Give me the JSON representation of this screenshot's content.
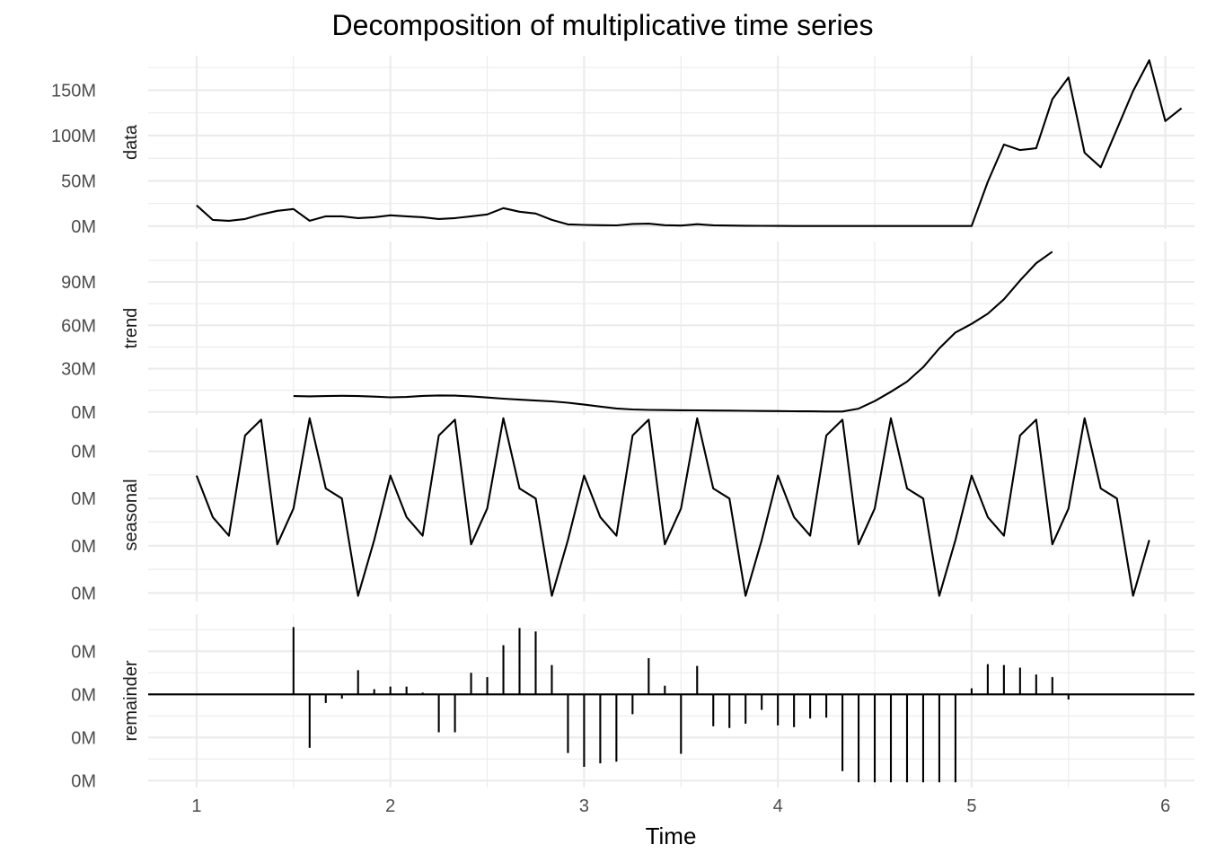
{
  "chart_data": {
    "type": "line",
    "title": "Decomposition of multiplicative time series",
    "xlabel": "Time",
    "xlim": [
      0.75,
      6.15
    ],
    "x_ticks": [
      1,
      2,
      3,
      4,
      5,
      6
    ],
    "x_tick_labels": [
      "1",
      "2",
      "3",
      "4",
      "5",
      "6"
    ],
    "frequency": 12,
    "grid": true,
    "panels": [
      {
        "name": "data",
        "type": "line",
        "start": 1,
        "ylim": [
          -3,
          188
        ],
        "y_ticks": [
          0,
          50,
          100,
          150
        ],
        "y_tick_labels": [
          "0M",
          "50M",
          "100M",
          "150M"
        ],
        "values": [
          23,
          7,
          6,
          8,
          13,
          17,
          19,
          6,
          11,
          11,
          9,
          10,
          12,
          11,
          10,
          8,
          9,
          11,
          13,
          20,
          16,
          14,
          7,
          2,
          1.5,
          1.2,
          1,
          2.5,
          2.8,
          1.2,
          0.8,
          2.2,
          1.1,
          0.8,
          0.6,
          0.5,
          0.4,
          0.3,
          0.3,
          0.3,
          0.3,
          0.3,
          0.3,
          0.3,
          0.3,
          0.3,
          0.3,
          0.3,
          0.3,
          49,
          90,
          84,
          86,
          140,
          164,
          81,
          65,
          107,
          149,
          183,
          116,
          130
        ]
      },
      {
        "name": "trend",
        "type": "line",
        "start": 1.5,
        "ylim": [
          -2,
          118
        ],
        "y_ticks": [
          0,
          30,
          60,
          90
        ],
        "y_tick_labels": [
          "0M",
          "30M",
          "60M",
          "90M"
        ],
        "values": [
          11,
          10.8,
          11,
          11.2,
          11,
          10.6,
          10.1,
          10.4,
          11.1,
          11.4,
          11.3,
          10.8,
          10,
          9.2,
          8.5,
          7.9,
          7.3,
          6.4,
          5.1,
          3.7,
          2.4,
          1.7,
          1.4,
          1.3,
          1.2,
          1.1,
          1,
          0.9,
          0.8,
          0.7,
          0.6,
          0.5,
          0.4,
          0.3,
          0.3,
          2.3,
          7.5,
          14,
          21,
          31,
          44,
          55,
          61,
          68,
          78,
          91,
          103,
          111
        ]
      },
      {
        "name": "seasonal",
        "type": "line",
        "start": 1,
        "ylim": [
          0.34,
          1.55
        ],
        "y_ticks": [
          0.4,
          0.73,
          1.06,
          1.39
        ],
        "y_tick_labels": [
          "0M",
          "0M",
          "0M",
          "0M"
        ],
        "values": [
          1.22,
          0.93,
          0.8,
          1.5,
          1.61,
          0.74,
          0.99,
          1.62,
          1.13,
          1.06,
          0.38,
          0.77
        ]
      },
      {
        "name": "remainder",
        "type": "bar",
        "start": 1,
        "ylim": [
          -1.08,
          0.93
        ],
        "y_ticks": [
          -1,
          -0.5,
          0,
          0.5
        ],
        "y_tick_labels": [
          "0M",
          "0M",
          "0M",
          "0M"
        ],
        "baseline": 0,
        "values": [
          null,
          null,
          null,
          null,
          null,
          null,
          0.78,
          -0.62,
          -0.1,
          -0.05,
          0.28,
          0.06,
          0.09,
          0.09,
          0.02,
          -0.44,
          -0.44,
          0.25,
          0.2,
          0.57,
          0.77,
          0.73,
          0.34,
          -0.68,
          -0.84,
          -0.8,
          -0.78,
          -0.23,
          0.42,
          0.1,
          -0.69,
          0.33,
          -0.37,
          -0.39,
          -0.34,
          -0.18,
          -0.36,
          -0.38,
          -0.28,
          -0.27,
          -0.89,
          -1.02,
          -1.02,
          -1.02,
          -1.02,
          -1.02,
          -1.02,
          -1.02,
          0.07,
          0.35,
          0.34,
          0.31,
          0.23,
          0.2,
          -0.06
        ]
      }
    ]
  }
}
